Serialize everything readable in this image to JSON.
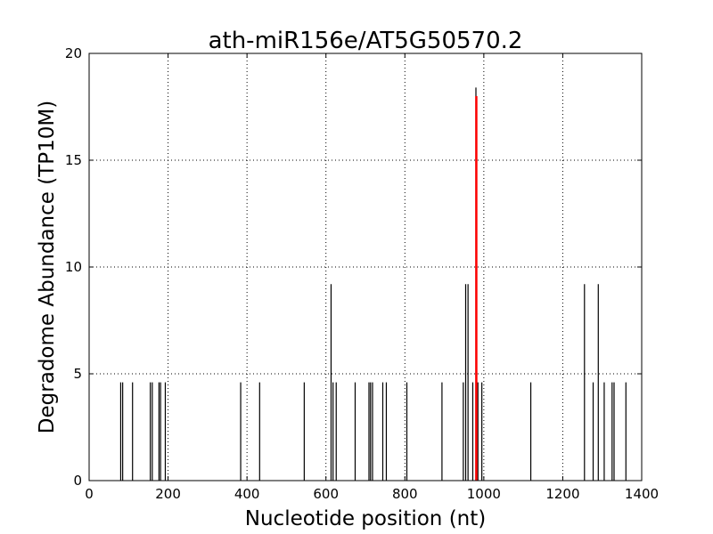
{
  "chart_data": {
    "type": "bar",
    "title": "ath-miR156e/AT5G50570.2",
    "xlabel": "Nucleotide position (nt)",
    "ylabel": "Degradome Abundance (TP10M)",
    "xlim": [
      0,
      1400
    ],
    "ylim": [
      0,
      20
    ],
    "x_ticks": [
      0,
      200,
      400,
      600,
      800,
      1000,
      1200,
      1400
    ],
    "y_ticks": [
      0,
      5,
      10,
      15,
      20
    ],
    "grid": true,
    "series": [
      {
        "color": "#000000",
        "points": [
          {
            "x": 80,
            "y": 4.6
          },
          {
            "x": 85,
            "y": 4.6
          },
          {
            "x": 110,
            "y": 4.6
          },
          {
            "x": 155,
            "y": 4.6
          },
          {
            "x": 160,
            "y": 4.6
          },
          {
            "x": 177,
            "y": 4.6
          },
          {
            "x": 181,
            "y": 4.6
          },
          {
            "x": 193,
            "y": 4.6
          },
          {
            "x": 384,
            "y": 4.6
          },
          {
            "x": 432,
            "y": 4.6
          },
          {
            "x": 545,
            "y": 4.6
          },
          {
            "x": 613,
            "y": 9.2
          },
          {
            "x": 618,
            "y": 4.6
          },
          {
            "x": 626,
            "y": 4.6
          },
          {
            "x": 674,
            "y": 4.6
          },
          {
            "x": 709,
            "y": 4.6
          },
          {
            "x": 713,
            "y": 4.6
          },
          {
            "x": 718,
            "y": 4.6
          },
          {
            "x": 744,
            "y": 4.6
          },
          {
            "x": 753,
            "y": 4.6
          },
          {
            "x": 805,
            "y": 4.6
          },
          {
            "x": 894,
            "y": 4.6
          },
          {
            "x": 948,
            "y": 4.6
          },
          {
            "x": 954,
            "y": 9.2
          },
          {
            "x": 960,
            "y": 9.2
          },
          {
            "x": 972,
            "y": 4.6
          },
          {
            "x": 980,
            "y": 18.4
          },
          {
            "x": 985,
            "y": 4.6
          },
          {
            "x": 995,
            "y": 4.6
          },
          {
            "x": 1119,
            "y": 4.6
          },
          {
            "x": 1255,
            "y": 9.2
          },
          {
            "x": 1277,
            "y": 4.6
          },
          {
            "x": 1290,
            "y": 9.2
          },
          {
            "x": 1305,
            "y": 4.6
          },
          {
            "x": 1325,
            "y": 4.6
          },
          {
            "x": 1330,
            "y": 4.6
          },
          {
            "x": 1360,
            "y": 4.6
          }
        ]
      },
      {
        "color": "#ff0000",
        "points": [
          {
            "x": 981,
            "y": 18.0
          }
        ]
      }
    ]
  }
}
